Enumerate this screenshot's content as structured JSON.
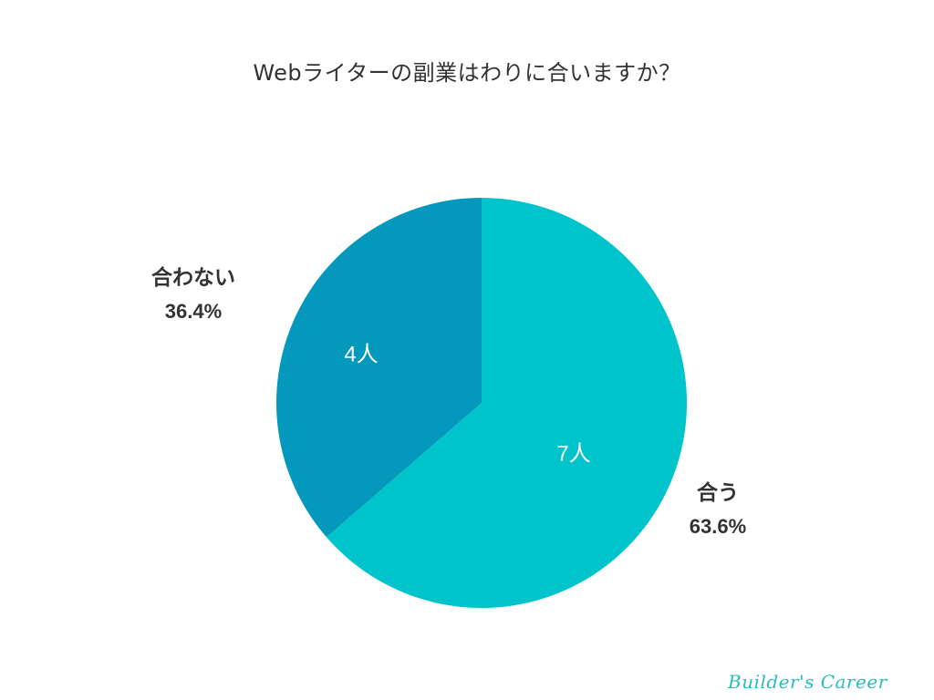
{
  "title": "Webライターの副業はわりに合いますか？",
  "chart_data": {
    "type": "pie",
    "title": "Webライターの副業はわりに合いますか？",
    "categories": [
      "合う",
      "合わない"
    ],
    "values": [
      7,
      4
    ],
    "percentages": [
      63.6,
      36.4
    ],
    "units": "人",
    "colors": [
      "#00c4cc",
      "#0398bc"
    ],
    "slices": [
      {
        "label": "合う",
        "count_label": "7人",
        "percent_label": "63.6%",
        "value": 7,
        "color": "#00c4cc"
      },
      {
        "label": "合わない",
        "count_label": "4人",
        "percent_label": "36.4%",
        "value": 4,
        "color": "#0398bc"
      }
    ],
    "legend": "none (labels outside slices)"
  },
  "watermark": "Builder's Career"
}
